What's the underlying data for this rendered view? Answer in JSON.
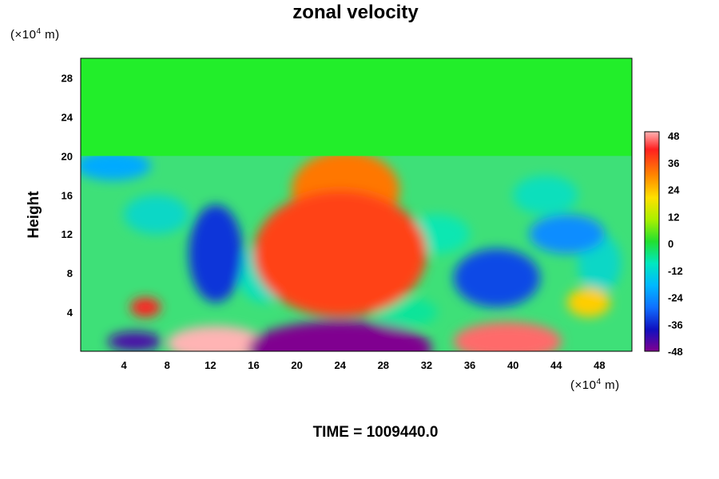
{
  "chart_data": {
    "type": "heatmap",
    "title": "zonal velocity",
    "ylabel": "Height",
    "y_unit_prefix": "(×10",
    "y_unit_exp": "4",
    "y_unit_suffix": " m)",
    "x_unit_prefix": "(×10",
    "x_unit_exp": "4",
    "x_unit_suffix": " m)",
    "xlim": [
      0,
      51
    ],
    "ylim": [
      0,
      30
    ],
    "x_ticks": [
      4,
      8,
      12,
      16,
      20,
      24,
      28,
      32,
      36,
      40,
      44,
      48
    ],
    "y_ticks": [
      4,
      8,
      12,
      16,
      20,
      24,
      28
    ],
    "colorbar": {
      "range": [
        -48,
        48
      ],
      "ticks": [
        48,
        36,
        24,
        12,
        0,
        -12,
        -24,
        -36,
        -48
      ]
    },
    "features": [
      {
        "x": 25.0,
        "y": 10.5,
        "value": 48,
        "rx": 5.5,
        "ry": 5.0
      },
      {
        "x": 24.5,
        "y": 16.5,
        "value": 30,
        "rx": 5.0,
        "ry": 4.0
      },
      {
        "x": 24.0,
        "y": 10.0,
        "value": 36,
        "rx": 8.0,
        "ry": 6.5
      },
      {
        "x": 12.5,
        "y": 0.8,
        "value": 48,
        "rx": 4.5,
        "ry": 1.8
      },
      {
        "x": 39.5,
        "y": 1.0,
        "value": 44,
        "rx": 5.0,
        "ry": 2.0
      },
      {
        "x": 24.0,
        "y": 0.3,
        "value": -48,
        "rx": 8.5,
        "ry": 2.8
      },
      {
        "x": 6.0,
        "y": 4.5,
        "value": 40,
        "rx": 1.4,
        "ry": 1.0
      },
      {
        "x": 12.5,
        "y": 10.0,
        "value": -36,
        "rx": 2.5,
        "ry": 5.0
      },
      {
        "x": 38.5,
        "y": 7.5,
        "value": -34,
        "rx": 4.0,
        "ry": 3.0
      },
      {
        "x": 45.0,
        "y": 12.0,
        "value": -26,
        "rx": 3.5,
        "ry": 2.0
      },
      {
        "x": 3.0,
        "y": 19.0,
        "value": -22,
        "rx": 3.5,
        "ry": 1.5
      },
      {
        "x": 5.0,
        "y": 1.0,
        "value": -44,
        "rx": 2.5,
        "ry": 1.0
      },
      {
        "x": 47.0,
        "y": 5.0,
        "value": 20,
        "rx": 2.0,
        "ry": 1.5
      }
    ],
    "green_band": {
      "y_from": 20,
      "y_to": 30,
      "value": 0
    }
  },
  "time": {
    "label": "TIME = ",
    "value": "1009440.0"
  }
}
